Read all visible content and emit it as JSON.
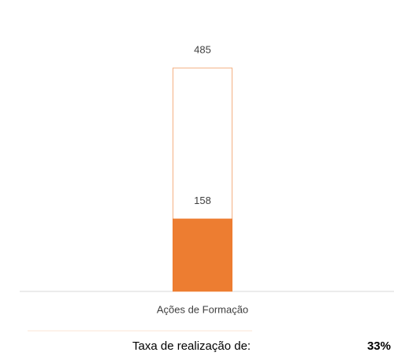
{
  "chart_data": {
    "type": "bar",
    "categories": [
      "Ações de Formação"
    ],
    "series": [
      {
        "color": "#f4b183",
        "style": "outline",
        "values": [
          485
        ]
      },
      {
        "color": "#ed7d31",
        "style": "filled",
        "values": [
          158
        ]
      }
    ],
    "ylim": [
      0,
      600
    ],
    "annotations": [
      "Taxa de realização de:",
      "33%"
    ]
  }
}
